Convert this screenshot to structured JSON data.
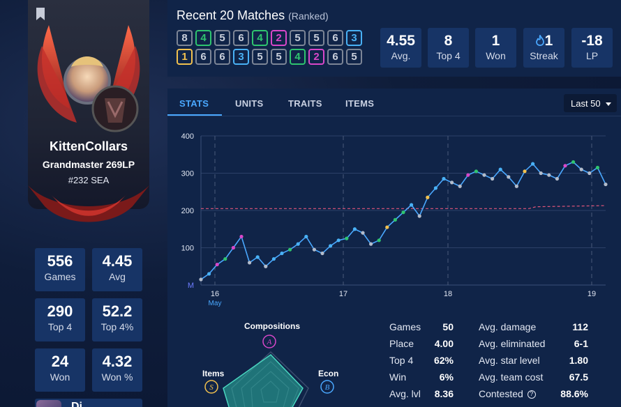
{
  "profile": {
    "summoner_name": "KittenCollars",
    "rank": "Grandmaster 269LP",
    "ladder": "#232 SEA",
    "partial_label": "Di"
  },
  "summary_stats": [
    {
      "value": "556",
      "label": "Games"
    },
    {
      "value": "4.45",
      "label": "Avg"
    },
    {
      "value": "290",
      "label": "Top 4"
    },
    {
      "value": "52.2",
      "label": "Top 4%"
    },
    {
      "value": "24",
      "label": "Won"
    },
    {
      "value": "4.32",
      "label": "Won %"
    }
  ],
  "recent": {
    "title": "Recent 20 Matches",
    "subtitle": "(Ranked)",
    "row1": [
      "8",
      "4",
      "5",
      "6",
      "4",
      "2",
      "5",
      "5",
      "6",
      "3"
    ],
    "row2": [
      "1",
      "6",
      "6",
      "3",
      "5",
      "5",
      "4",
      "2",
      "6",
      "5"
    ],
    "summary": [
      {
        "value": "4.55",
        "label": "Avg."
      },
      {
        "value": "8",
        "label": "Top 4"
      },
      {
        "value": "1",
        "label": "Won"
      },
      {
        "value": "1",
        "label": "Streak",
        "icon": "flame-icon"
      },
      {
        "value": "-18",
        "label": "LP"
      }
    ],
    "place_colors": {
      "1": "#f2c14e",
      "2": "#d947c9",
      "3": "#49b1f5",
      "4": "#2fc46f",
      "5": "#7c8596",
      "6": "#7c8596",
      "7": "#7c8596",
      "8": "#7c8596"
    }
  },
  "tabs": [
    "STATS",
    "UNITS",
    "TRAITS",
    "ITEMS"
  ],
  "period_select": "Last 50",
  "chart_data": {
    "type": "line",
    "y_ticks": [
      "400",
      "300",
      "200",
      "100",
      "M"
    ],
    "x_ticks": [
      "16",
      "17",
      "18",
      "19"
    ],
    "x_sub": "May",
    "ylim": [
      0,
      400
    ],
    "series": [
      {
        "values": [
          15,
          30,
          55,
          70,
          100,
          130,
          60,
          75,
          50,
          70,
          85,
          95,
          110,
          130,
          95,
          85,
          105,
          120,
          125,
          150,
          140,
          110,
          120,
          155,
          175,
          195,
          215,
          185,
          235,
          260,
          285,
          275,
          265,
          295,
          305,
          295,
          285,
          310,
          290,
          265,
          305,
          325,
          300,
          295,
          285,
          320,
          330,
          310,
          300,
          315,
          270
        ],
        "places": [
          5,
          3,
          2,
          4,
          2,
          2,
          5,
          3,
          5,
          3,
          3,
          4,
          3,
          3,
          5,
          5,
          3,
          3,
          4,
          3,
          5,
          5,
          4,
          1,
          4,
          4,
          3,
          5,
          1,
          3,
          3,
          5,
          5,
          2,
          4,
          5,
          5,
          3,
          5,
          5,
          1,
          3,
          5,
          5,
          5,
          2,
          4,
          5,
          5,
          4,
          5
        ]
      }
    ],
    "reference_line": {
      "from": 205,
      "to": 213
    }
  },
  "stats_left": [
    {
      "label": "Games",
      "value": "50"
    },
    {
      "label": "Place",
      "value": "4.00"
    },
    {
      "label": "Top 4",
      "value": "62%"
    },
    {
      "label": "Win",
      "value": "6%"
    },
    {
      "label": "Avg. lvl",
      "value": "8.36"
    }
  ],
  "stats_right": [
    {
      "label": "Avg. damage",
      "value": "112"
    },
    {
      "label": "Avg. eliminated",
      "value": "6-1"
    },
    {
      "label": "Avg. star level",
      "value": "1.80"
    },
    {
      "label": "Avg. team cost",
      "value": "67.5"
    },
    {
      "label": "Contested",
      "value": "88.6%"
    }
  ],
  "radar": {
    "top_label": "Compositions",
    "top_letter": "A",
    "left_label": "Items",
    "left_letter": "S",
    "right_label": "Econ",
    "right_letter": "B"
  },
  "colors": {
    "accent": "#4aa8ff",
    "panel": "#102448",
    "box": "#173466"
  }
}
